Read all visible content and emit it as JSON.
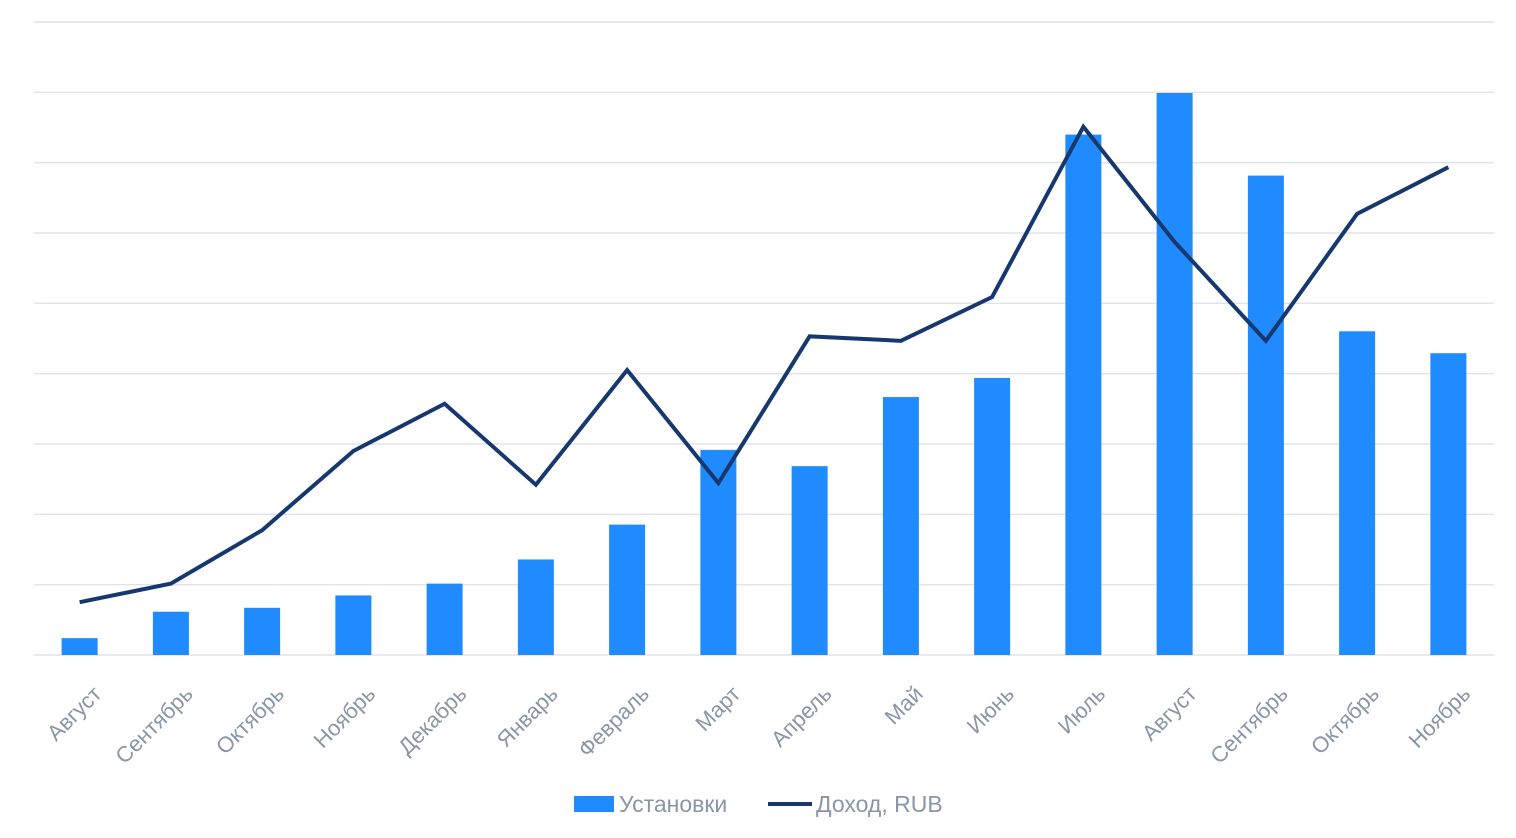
{
  "chart_data": {
    "type": "bar+line",
    "categories": [
      "Август",
      "Сентябрь",
      "Октябрь",
      "Ноябрь",
      "Декабрь",
      "Январь",
      "Февраль",
      "Март",
      "Апрель",
      "Май",
      "Июнь",
      "Июль",
      "Август",
      "Сентябрь",
      "Октябрь",
      "Ноябрь"
    ],
    "series": [
      {
        "name": "Установки",
        "type": "bar",
        "color": "#1f8bff",
        "values": [
          3,
          7.7,
          8.4,
          10.6,
          12.7,
          17,
          23.2,
          36.5,
          33.6,
          45.9,
          49.3,
          92.6,
          100,
          85.3,
          57.6,
          53.7
        ]
      },
      {
        "name": "Доход, RUB",
        "type": "line",
        "color": "#17386e",
        "values": [
          9.4,
          12.7,
          22.2,
          36.3,
          44.7,
          30.3,
          50.7,
          30.6,
          56.7,
          55.9,
          63.7,
          94,
          73.5,
          55.9,
          78.5,
          86.8
        ]
      }
    ],
    "ylim": [
      0,
      100
    ],
    "grid": true,
    "legend_position": "bottom-center"
  }
}
